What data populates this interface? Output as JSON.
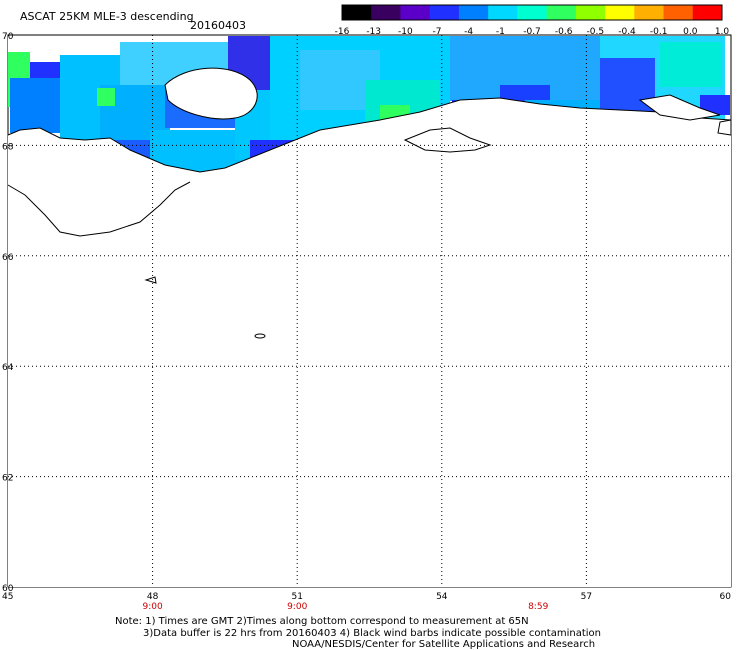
{
  "header": {
    "title": "ASCAT 25KM MLE-3 descending",
    "date": "20160403"
  },
  "colorbar": {
    "labels": [
      "-16",
      "-13",
      "-10",
      "-7",
      "-4",
      "-1",
      "-0.7",
      "-0.6",
      "-0.5",
      "-0.4",
      "-0.1",
      "0.0",
      "1.0"
    ],
    "colors": [
      "#000000",
      "#3a0060",
      "#5a00c8",
      "#2030ff",
      "#0080ff",
      "#00d8ff",
      "#00ffd0",
      "#30ff60",
      "#90ff00",
      "#ffff00",
      "#ffb000",
      "#ff6000",
      "#ff0000"
    ]
  },
  "map": {
    "lon_labels": [
      "45",
      "48",
      "51",
      "54",
      "57",
      "60"
    ],
    "lat_labels": [
      "70",
      "68",
      "66",
      "64",
      "62",
      "60"
    ],
    "time_labels": [
      {
        "lon": 48,
        "text": "9:00"
      },
      {
        "lon": 51,
        "text": "9:00"
      },
      {
        "lon": 56,
        "text": "8:59"
      }
    ],
    "time_color": "#cc0000",
    "land_color": "#ffffff",
    "coast_color": "#000000"
  },
  "footer": {
    "note_line1": "Note: 1) Times are GMT 2)Times along bottom correspond to measurement at 65N",
    "note_line2": "3)Data buffer is 22 hrs from 20160403 4) Black wind barbs indicate possible contamination",
    "credit": "NOAA/NESDIS/Center for Satellite Applications and Research"
  }
}
